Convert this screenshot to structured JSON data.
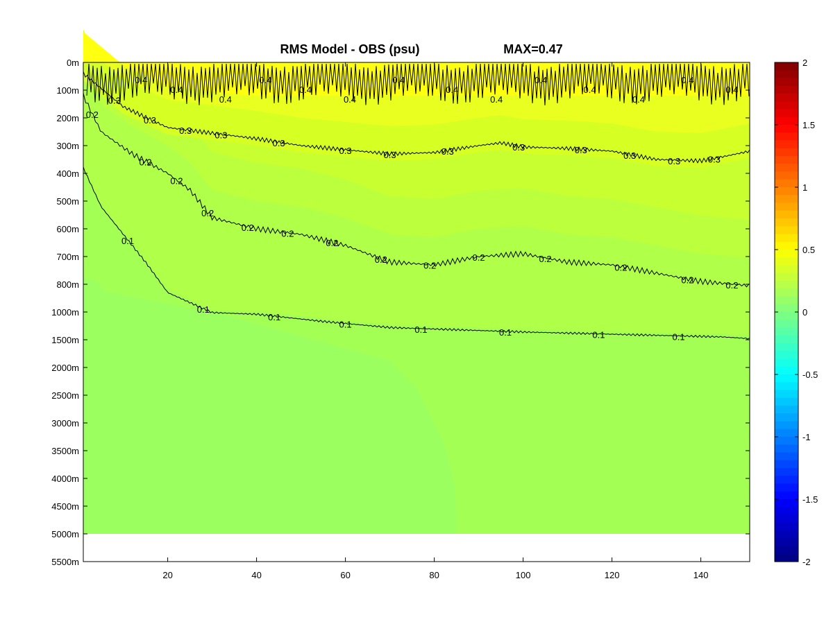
{
  "chart_data": {
    "type": "heatmap",
    "title": "RMS Model - OBS (psu)",
    "subtitle": "MAX=0.47",
    "xlabel": "",
    "ylabel": "",
    "xlim": [
      1,
      151
    ],
    "x_ticks": [
      20,
      40,
      60,
      80,
      100,
      120,
      140
    ],
    "y_tick_labels": [
      "0m",
      "100m",
      "200m",
      "300m",
      "400m",
      "500m",
      "600m",
      "700m",
      "800m",
      "1000m",
      "1500m",
      "2000m",
      "2500m",
      "3000m",
      "3500m",
      "4000m",
      "4500m",
      "5000m",
      "5500m"
    ],
    "y_axis_note": "non-uniform depth axis, one tick per grid band",
    "data_bottom_depth": "5000m",
    "colorbar": {
      "colormap": "jet",
      "clim": [
        -2,
        2
      ],
      "ticks": [
        "2",
        "1.5",
        "1",
        "0.5",
        "0",
        "-0.5",
        "-1",
        "-1.5",
        "-2"
      ]
    },
    "fill_levels": [
      {
        "value": 0.45,
        "color": "#ffff10"
      },
      {
        "value": 0.4,
        "color": "#e8ff20"
      },
      {
        "value": 0.35,
        "color": "#d6ff24"
      },
      {
        "value": 0.3,
        "color": "#c8ff30"
      },
      {
        "value": 0.25,
        "color": "#bcff3c"
      },
      {
        "value": 0.2,
        "color": "#b0ff48"
      },
      {
        "value": 0.15,
        "color": "#a4ff54"
      },
      {
        "value": 0.1,
        "color": "#9cff60"
      },
      {
        "value": 0.08,
        "color": "#96ff66"
      }
    ],
    "contours": [
      {
        "level": 0.4,
        "label": "0.4",
        "depth_range": [
          "0m",
          "100m"
        ],
        "label_x": [
          14,
          22,
          33,
          42,
          51,
          61,
          72,
          84,
          94,
          104,
          115,
          126,
          137,
          147
        ]
      },
      {
        "level": 0.3,
        "label": "0.3",
        "points": [
          [
            1,
            "40m"
          ],
          [
            10,
            "160m"
          ],
          [
            20,
            "235m"
          ],
          [
            30,
            "255m"
          ],
          [
            40,
            "275m"
          ],
          [
            50,
            "300m"
          ],
          [
            60,
            "315m"
          ],
          [
            70,
            "330m"
          ],
          [
            80,
            "325m"
          ],
          [
            90,
            "300m"
          ],
          [
            95,
            "290m"
          ],
          [
            100,
            "305m"
          ],
          [
            110,
            "310m"
          ],
          [
            120,
            "320m"
          ],
          [
            130,
            "350m"
          ],
          [
            140,
            "355m"
          ],
          [
            145,
            "340m"
          ],
          [
            151,
            "320m"
          ]
        ],
        "label_x": [
          8,
          16,
          24,
          32,
          45,
          60,
          70,
          83,
          99,
          113,
          124,
          134,
          143
        ]
      },
      {
        "level": 0.2,
        "label": "0.2",
        "points": [
          [
            1,
            "120m"
          ],
          [
            5,
            "250m"
          ],
          [
            12,
            "330m"
          ],
          [
            20,
            "400m"
          ],
          [
            25,
            "460m"
          ],
          [
            30,
            "560m"
          ],
          [
            40,
            "600m"
          ],
          [
            50,
            "620m"
          ],
          [
            60,
            "660m"
          ],
          [
            70,
            "720m"
          ],
          [
            80,
            "730m"
          ],
          [
            90,
            "700m"
          ],
          [
            100,
            "690m"
          ],
          [
            110,
            "720m"
          ],
          [
            120,
            "730m"
          ],
          [
            130,
            "760m"
          ],
          [
            140,
            "790m"
          ],
          [
            151,
            "810m"
          ]
        ],
        "label_x": [
          3,
          15,
          22,
          29,
          38,
          47,
          57,
          68,
          79,
          90,
          105,
          122,
          137,
          147
        ]
      },
      {
        "level": 0.1,
        "label": "0.1",
        "points": [
          [
            1,
            "380m"
          ],
          [
            5,
            "520m"
          ],
          [
            10,
            "620m"
          ],
          [
            15,
            "720m"
          ],
          [
            20,
            "860m"
          ],
          [
            30,
            "1010m"
          ],
          [
            40,
            "1040m"
          ],
          [
            55,
            "1170m"
          ],
          [
            70,
            "1280m"
          ],
          [
            85,
            "1320m"
          ],
          [
            100,
            "1360m"
          ],
          [
            115,
            "1390m"
          ],
          [
            130,
            "1420m"
          ],
          [
            145,
            "1450m"
          ],
          [
            151,
            "1480m"
          ]
        ],
        "label_x": [
          11,
          28,
          44,
          60,
          77,
          96,
          117,
          135
        ]
      }
    ]
  }
}
